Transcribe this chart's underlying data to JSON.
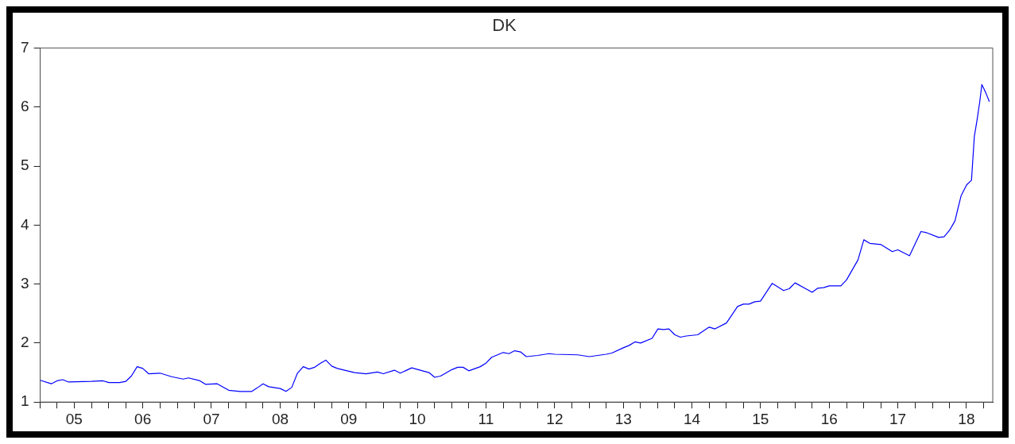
{
  "chart_data": {
    "type": "line",
    "title": "DK",
    "x": [
      "2005-01",
      "2005-03",
      "2005-04",
      "2005-05",
      "2005-06",
      "2005-10",
      "2005-12",
      "2006-01",
      "2006-03",
      "2006-04",
      "2006-05",
      "2006-06",
      "2006-07",
      "2006-08",
      "2006-10",
      "2006-12",
      "2007-02",
      "2007-03",
      "2007-05",
      "2007-06",
      "2007-08",
      "2007-10",
      "2007-12",
      "2008-02",
      "2008-03",
      "2008-04",
      "2008-05",
      "2008-07",
      "2008-08",
      "2008-09",
      "2008-10",
      "2008-11",
      "2008-12",
      "2009-01",
      "2009-02",
      "2009-03",
      "2009-04",
      "2009-05",
      "2009-08",
      "2009-10",
      "2009-12",
      "2010-01",
      "2010-03",
      "2010-04",
      "2010-06",
      "2010-09",
      "2010-10",
      "2010-11",
      "2011-01",
      "2011-02",
      "2011-03",
      "2011-04",
      "2011-06",
      "2011-07",
      "2011-08",
      "2011-10",
      "2011-11",
      "2011-12",
      "2012-01",
      "2012-02",
      "2012-04",
      "2012-06",
      "2012-07",
      "2012-11",
      "2013-01",
      "2013-04",
      "2013-05",
      "2013-07",
      "2013-08",
      "2013-09",
      "2013-10",
      "2013-12",
      "2014-01",
      "2014-02",
      "2014-03",
      "2014-04",
      "2014-05",
      "2014-06",
      "2014-08",
      "2014-10",
      "2014-11",
      "2015-01",
      "2015-03",
      "2015-04",
      "2015-05",
      "2015-06",
      "2015-07",
      "2015-09",
      "2015-11",
      "2015-12",
      "2016-01",
      "2016-04",
      "2016-05",
      "2016-06",
      "2016-07",
      "2016-09",
      "2016-10",
      "2016-12",
      "2017-01",
      "2017-02",
      "2017-04",
      "2017-06",
      "2017-07",
      "2017-09",
      "2017-11",
      "2017-12",
      "2018-02-03",
      "2018-03-04",
      "2018-04-02",
      "2018-05-01",
      "2018-05-16",
      "2018-06-03",
      "2018-07-02",
      "2018-07-28",
      "2018-08-12",
      "2018-08-26",
      "2018-09-10",
      "2018-09-21",
      "2018-10-02",
      "2018-10-16",
      "2018-10-31"
    ],
    "series": [
      {
        "color": "#0000ff",
        "values": [
          1.37,
          1.31,
          1.36,
          1.38,
          1.34,
          1.35,
          1.36,
          1.33,
          1.33,
          1.35,
          1.44,
          1.6,
          1.57,
          1.48,
          1.49,
          1.43,
          1.39,
          1.41,
          1.36,
          1.3,
          1.31,
          1.2,
          1.18,
          1.18,
          1.24,
          1.31,
          1.26,
          1.23,
          1.18,
          1.25,
          1.49,
          1.6,
          1.56,
          1.59,
          1.66,
          1.71,
          1.61,
          1.57,
          1.5,
          1.48,
          1.51,
          1.48,
          1.54,
          1.49,
          1.58,
          1.5,
          1.42,
          1.44,
          1.55,
          1.59,
          1.59,
          1.53,
          1.6,
          1.66,
          1.76,
          1.84,
          1.82,
          1.87,
          1.85,
          1.77,
          1.79,
          1.82,
          1.81,
          1.8,
          1.77,
          1.81,
          1.83,
          1.92,
          1.96,
          2.02,
          2.0,
          2.08,
          2.24,
          2.23,
          2.24,
          2.14,
          2.1,
          2.12,
          2.14,
          2.27,
          2.24,
          2.34,
          2.62,
          2.66,
          2.66,
          2.7,
          2.71,
          3.01,
          2.89,
          2.92,
          3.02,
          2.86,
          2.93,
          2.94,
          2.97,
          2.97,
          3.07,
          3.41,
          3.75,
          3.69,
          3.67,
          3.55,
          3.58,
          3.48,
          3.89,
          3.87,
          3.79,
          3.8,
          3.91,
          4.07,
          4.27,
          4.5,
          4.68,
          4.76,
          5.5,
          5.77,
          6.09,
          6.38,
          6.31,
          6.21,
          6.09
        ]
      }
    ],
    "xlim": [
      "2005-01-01",
      "2018-11-18"
    ],
    "xticks": [
      {
        "value": "2005-01-01",
        "label": null
      },
      {
        "value": "2005-04-01",
        "label": null
      },
      {
        "value": "2005-07-01",
        "label": "05"
      },
      {
        "value": "2005-10-01",
        "label": null
      },
      {
        "value": "2006-01-01",
        "label": null
      },
      {
        "value": "2006-04-01",
        "label": null
      },
      {
        "value": "2006-07-01",
        "label": "06"
      },
      {
        "value": "2006-10-01",
        "label": null
      },
      {
        "value": "2007-01-01",
        "label": null
      },
      {
        "value": "2007-04-01",
        "label": null
      },
      {
        "value": "2007-07-01",
        "label": "07"
      },
      {
        "value": "2007-10-01",
        "label": null
      },
      {
        "value": "2008-01-01",
        "label": null
      },
      {
        "value": "2008-04-01",
        "label": null
      },
      {
        "value": "2008-07-01",
        "label": "08"
      },
      {
        "value": "2008-10-01",
        "label": null
      },
      {
        "value": "2009-01-01",
        "label": null
      },
      {
        "value": "2009-04-01",
        "label": null
      },
      {
        "value": "2009-07-01",
        "label": "09"
      },
      {
        "value": "2009-10-01",
        "label": null
      },
      {
        "value": "2010-01-01",
        "label": null
      },
      {
        "value": "2010-04-01",
        "label": null
      },
      {
        "value": "2010-07-01",
        "label": "10"
      },
      {
        "value": "2010-10-01",
        "label": null
      },
      {
        "value": "2011-01-01",
        "label": null
      },
      {
        "value": "2011-04-01",
        "label": null
      },
      {
        "value": "2011-07-01",
        "label": "11"
      },
      {
        "value": "2011-10-01",
        "label": null
      },
      {
        "value": "2012-01-01",
        "label": null
      },
      {
        "value": "2012-04-01",
        "label": null
      },
      {
        "value": "2012-07-01",
        "label": "12"
      },
      {
        "value": "2012-10-01",
        "label": null
      },
      {
        "value": "2013-01-01",
        "label": null
      },
      {
        "value": "2013-04-01",
        "label": null
      },
      {
        "value": "2013-07-01",
        "label": "13"
      },
      {
        "value": "2013-10-01",
        "label": null
      },
      {
        "value": "2014-01-01",
        "label": null
      },
      {
        "value": "2014-04-01",
        "label": null
      },
      {
        "value": "2014-07-01",
        "label": "14"
      },
      {
        "value": "2014-10-01",
        "label": null
      },
      {
        "value": "2015-01-01",
        "label": null
      },
      {
        "value": "2015-04-01",
        "label": null
      },
      {
        "value": "2015-07-01",
        "label": "15"
      },
      {
        "value": "2015-10-01",
        "label": null
      },
      {
        "value": "2016-01-01",
        "label": null
      },
      {
        "value": "2016-04-01",
        "label": null
      },
      {
        "value": "2016-07-01",
        "label": "16"
      },
      {
        "value": "2016-10-01",
        "label": null
      },
      {
        "value": "2017-01-01",
        "label": null
      },
      {
        "value": "2017-04-01",
        "label": null
      },
      {
        "value": "2017-07-01",
        "label": "17"
      },
      {
        "value": "2017-10-01",
        "label": null
      },
      {
        "value": "2018-01-01",
        "label": null
      },
      {
        "value": "2018-04-01",
        "label": null
      },
      {
        "value": "2018-07-01",
        "label": "18"
      },
      {
        "value": "2018-10-01",
        "label": null
      }
    ],
    "ylim": [
      1,
      7
    ],
    "yticks": [
      1,
      2,
      3,
      4,
      5,
      6,
      7
    ],
    "grid": false,
    "legend": false,
    "marker": "none",
    "line_style": "solid"
  }
}
